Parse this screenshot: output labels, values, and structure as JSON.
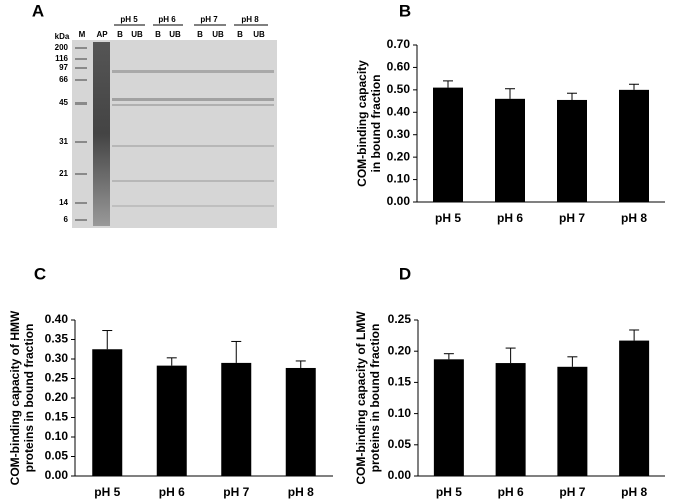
{
  "gel": {
    "panel_label": "A",
    "unit": "kDa",
    "markers": [
      "200",
      "116",
      "97",
      "66",
      "45",
      "31",
      "21",
      "14",
      "6"
    ],
    "lanes": [
      "M",
      "AP",
      "B",
      "UB",
      "B",
      "UB",
      "B",
      "UB",
      "B",
      "UB"
    ],
    "groups": [
      "pH 5",
      "pH 6",
      "pH 7",
      "pH 8"
    ]
  },
  "chart_data": [
    {
      "type": "bar",
      "panel_label": "B",
      "ylabel": [
        "COM-binding capacity",
        "in bound fraction"
      ],
      "categories": [
        "pH 5",
        "pH 6",
        "pH 7",
        "pH 8"
      ],
      "values": [
        0.51,
        0.46,
        0.455,
        0.5
      ],
      "errors": [
        0.03,
        0.045,
        0.03,
        0.025
      ],
      "color": "#000000",
      "ylim": [
        0,
        0.7
      ],
      "yticks": [
        {
          "value": 0,
          "label": "0.00"
        },
        {
          "value": 0.1,
          "label": "0.10"
        },
        {
          "value": 0.2,
          "label": "0.20"
        },
        {
          "value": 0.3,
          "label": "0.30"
        },
        {
          "value": 0.4,
          "label": "0.40"
        },
        {
          "value": 0.5,
          "label": "0.50"
        },
        {
          "value": 0.6,
          "label": "0.60"
        },
        {
          "value": 0.7,
          "label": "0.70"
        }
      ]
    },
    {
      "type": "bar",
      "panel_label": "C",
      "ylabel": [
        "COM-binding capacity of HMW",
        "proteins in bound fraction"
      ],
      "categories": [
        "pH 5",
        "pH 6",
        "pH 7",
        "pH 8"
      ],
      "values": [
        0.325,
        0.283,
        0.29,
        0.277
      ],
      "errors": [
        0.048,
        0.02,
        0.055,
        0.018
      ],
      "color": "#000000",
      "ylim": [
        0,
        0.4
      ],
      "yticks": [
        {
          "value": 0,
          "label": "0.00"
        },
        {
          "value": 0.05,
          "label": "0.05"
        },
        {
          "value": 0.1,
          "label": "0.10"
        },
        {
          "value": 0.15,
          "label": "0.15"
        },
        {
          "value": 0.2,
          "label": "0.20"
        },
        {
          "value": 0.25,
          "label": "0.25"
        },
        {
          "value": 0.3,
          "label": "0.30"
        },
        {
          "value": 0.35,
          "label": "0.35"
        },
        {
          "value": 0.4,
          "label": "0.40"
        }
      ]
    },
    {
      "type": "bar",
      "panel_label": "D",
      "ylabel": [
        "COM-binding capacity of LMW",
        "proteins in bound fraction"
      ],
      "categories": [
        "pH 5",
        "pH 6",
        "pH 7",
        "pH 8"
      ],
      "values": [
        0.187,
        0.181,
        0.175,
        0.217
      ],
      "errors": [
        0.009,
        0.024,
        0.016,
        0.017
      ],
      "color": "#000000",
      "ylim": [
        0,
        0.25
      ],
      "yticks": [
        {
          "value": 0,
          "label": "0.00"
        },
        {
          "value": 0.05,
          "label": "0.05"
        },
        {
          "value": 0.1,
          "label": "0.10"
        },
        {
          "value": 0.15,
          "label": "0.15"
        },
        {
          "value": 0.2,
          "label": "0.20"
        },
        {
          "value": 0.25,
          "label": "0.25"
        }
      ]
    }
  ]
}
